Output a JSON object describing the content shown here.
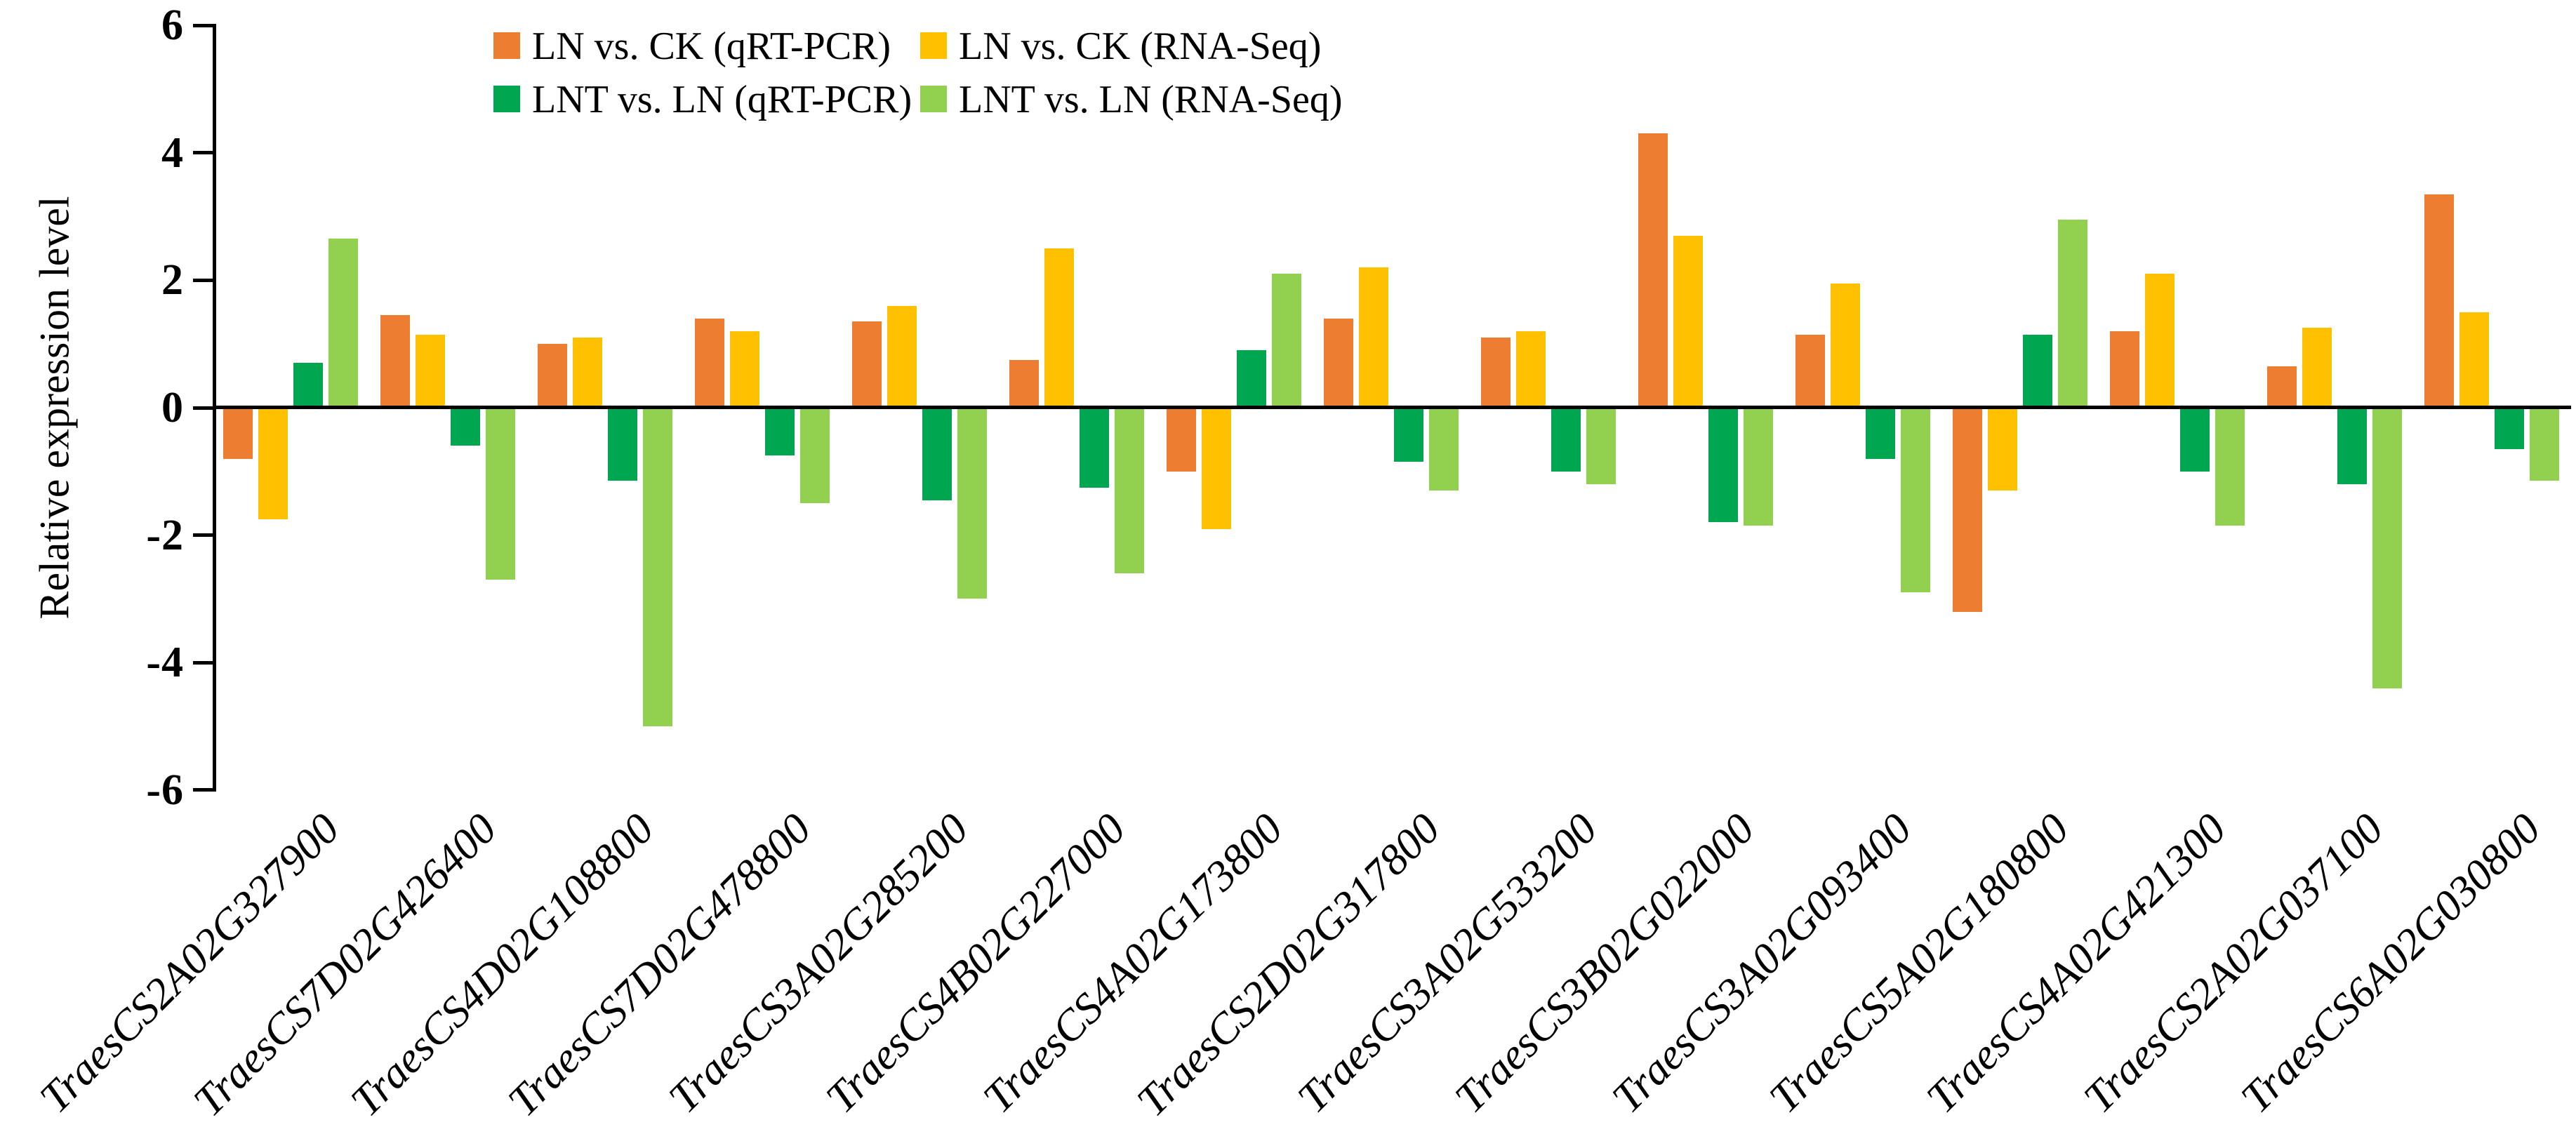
{
  "figure": {
    "background": "#ffffff"
  },
  "y_axis": {
    "label": "Relative expression level",
    "ticks": [
      6,
      4,
      2,
      0,
      -2,
      -4,
      -6
    ]
  },
  "legend": [
    {
      "label": "LN vs. CK (qRT-PCR)",
      "color": "#ED7D31"
    },
    {
      "label": "LN vs. CK (RNA-Seq)",
      "color": "#FFC000"
    },
    {
      "label": "LNT vs. LN (qRT-PCR)",
      "color": "#00A650"
    },
    {
      "label": "LNT vs. LN (RNA-Seq)",
      "color": "#92D050"
    }
  ],
  "chart_data": {
    "type": "bar",
    "title": "",
    "xlabel": "",
    "ylabel": "Relative expression level",
    "ylim": [
      -6,
      6
    ],
    "ytick_step": 2,
    "grid": false,
    "legend_position": "top-inside",
    "categories": [
      "TraesCS2A02G327900",
      "TraesCS7D02G426400",
      "TraesCS4D02G108800",
      "TraesCS7D02G478800",
      "TraesCS3A02G285200",
      "TraesCS4B02G227000",
      "TraesCS4A02G173800",
      "TraesCS2D02G317800",
      "TraesCS3A02G533200",
      "TraesCS3B02G022000",
      "TraesCS3A02G093400",
      "TraesCS5A02G180800",
      "TraesCS4A02G421300",
      "TraesCS2A02G037100",
      "TraesCS6A02G030800"
    ],
    "series": [
      {
        "name": "LN vs. CK (qRT-PCR)",
        "color": "#ED7D31",
        "values": [
          -0.8,
          1.45,
          1.0,
          1.4,
          1.35,
          0.75,
          -1.0,
          1.4,
          1.1,
          4.3,
          1.15,
          -3.2,
          1.2,
          0.65,
          3.35
        ]
      },
      {
        "name": "LN vs. CK (RNA-Seq)",
        "color": "#FFC000",
        "values": [
          -1.75,
          1.15,
          1.1,
          1.2,
          1.6,
          2.5,
          -1.9,
          2.2,
          1.2,
          2.7,
          1.95,
          -1.3,
          2.1,
          1.25,
          1.5
        ]
      },
      {
        "name": "LNT vs. LN (qRT-PCR)",
        "color": "#00A650",
        "values": [
          0.7,
          -0.6,
          -1.15,
          -0.75,
          -1.45,
          -1.25,
          0.9,
          -0.85,
          -1.0,
          -1.8,
          -0.8,
          1.15,
          -1.0,
          -1.2,
          -0.65
        ]
      },
      {
        "name": "LNT vs. LN (RNA-Seq)",
        "color": "#92D050",
        "values": [
          2.65,
          -2.7,
          -5.0,
          -1.5,
          -3.0,
          -2.6,
          2.1,
          -1.3,
          -1.2,
          -1.85,
          -2.9,
          2.95,
          -1.85,
          -4.4,
          -1.15
        ]
      }
    ]
  }
}
